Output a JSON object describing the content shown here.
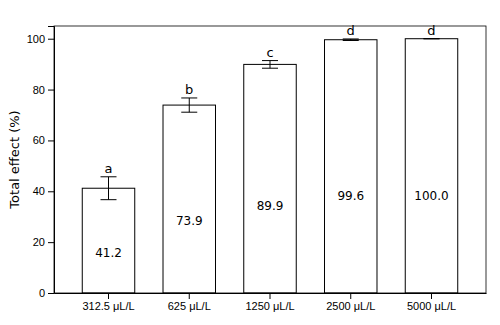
{
  "chart_data": {
    "type": "bar",
    "categories": [
      "312.5 μL/L",
      "625 μL/L",
      "1250 μL/L",
      "2500 μL/L",
      "5000 μL/L"
    ],
    "values": [
      41.2,
      73.9,
      89.9,
      99.6,
      100.0
    ],
    "value_labels": [
      "41.2",
      "73.9",
      "89.9",
      "99.6",
      "100.0"
    ],
    "data_labels": true,
    "errors": [
      4.5,
      2.8,
      1.5,
      0.3,
      0.0
    ],
    "annotations": [
      "a",
      "b",
      "c",
      "d",
      "d"
    ],
    "color": "#ffffff",
    "ylabel": "Total effect (%)",
    "ylim": [
      0,
      105
    ],
    "yticks": [
      0,
      20,
      40,
      60,
      80,
      100
    ],
    "grid": false
  }
}
